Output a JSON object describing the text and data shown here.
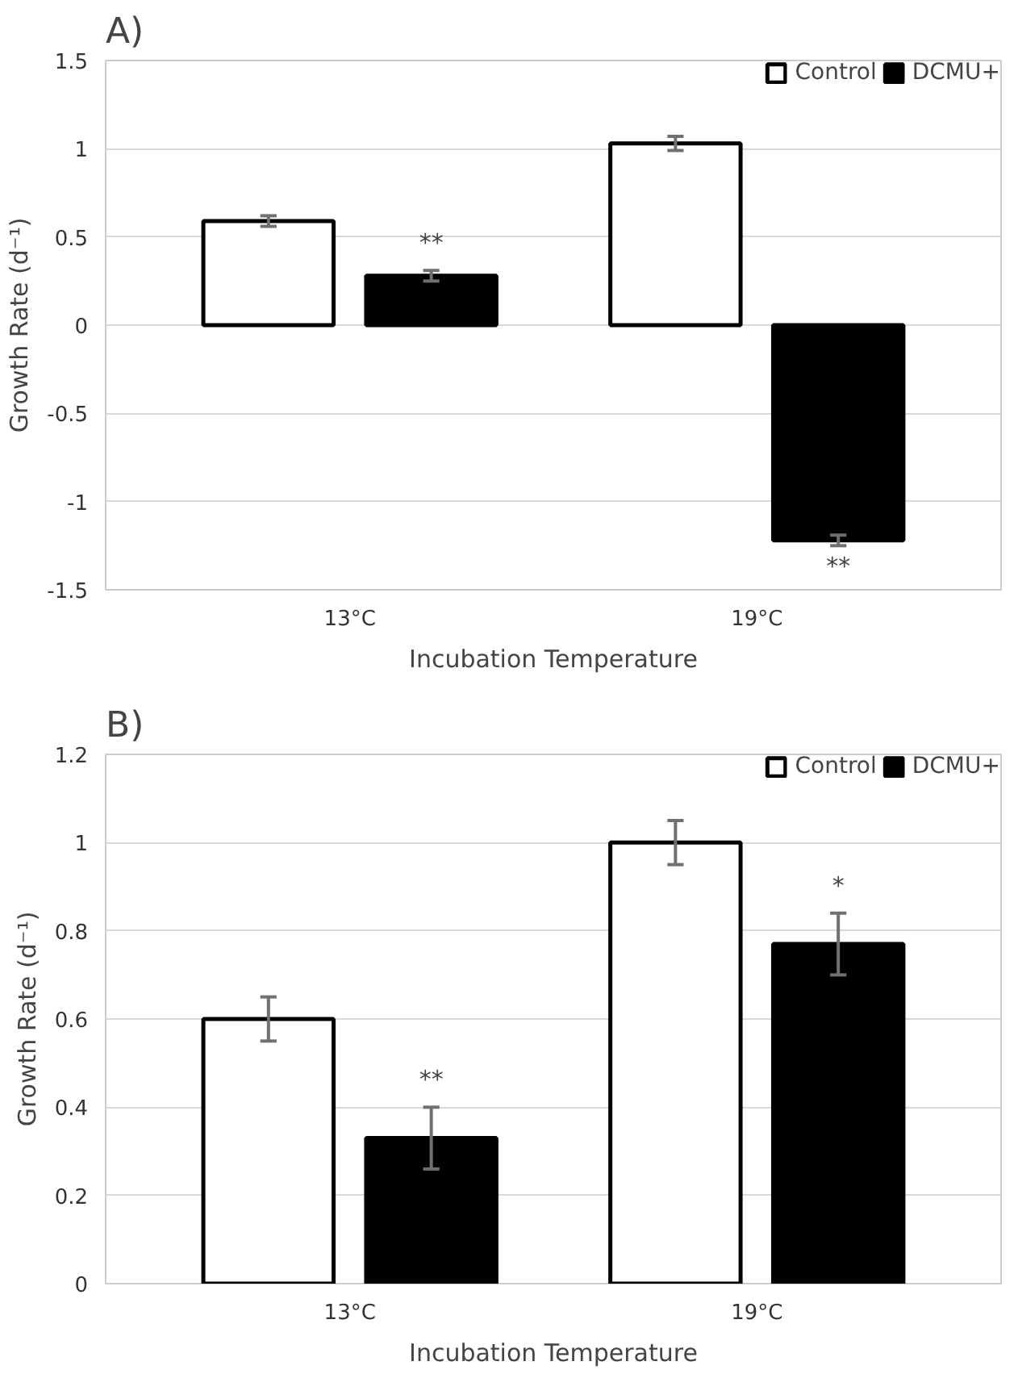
{
  "chart_data": [
    {
      "type": "bar",
      "title": "A)",
      "xlabel": "Incubation Temperature",
      "ylabel": "Growth Rate (d⁻¹)",
      "categories": [
        "13°C",
        "19°C"
      ],
      "series": [
        {
          "name": "Control",
          "color": "#ffffff",
          "values": [
            0.59,
            1.03
          ],
          "errors": [
            0.03,
            0.04
          ]
        },
        {
          "name": "DCMU+",
          "color": "#000000",
          "values": [
            0.28,
            -1.22
          ],
          "errors": [
            0.03,
            0.03
          ]
        }
      ],
      "ylim": [
        -1.5,
        1.5
      ],
      "yticks": [
        -1.5,
        -1,
        -0.5,
        0,
        0.5,
        1,
        1.5
      ],
      "grid": "y",
      "legend": "top right",
      "annotations": [
        "**",
        "**"
      ]
    },
    {
      "type": "bar",
      "title": "B)",
      "xlabel": "Incubation Temperature",
      "ylabel": "Growth Rate (d⁻¹)",
      "categories": [
        "13°C",
        "19°C"
      ],
      "series": [
        {
          "name": "Control",
          "color": "#ffffff",
          "values": [
            0.6,
            1.0
          ],
          "errors": [
            0.05,
            0.05
          ]
        },
        {
          "name": "DCMU+",
          "color": "#000000",
          "values": [
            0.33,
            0.77
          ],
          "errors": [
            0.07,
            0.07
          ]
        }
      ],
      "ylim": [
        0,
        1.2
      ],
      "yticks": [
        0,
        0.2,
        0.4,
        0.6,
        0.8,
        1,
        1.2
      ],
      "grid": "y",
      "legend": "top right",
      "annotations": [
        "**",
        "*"
      ]
    }
  ]
}
